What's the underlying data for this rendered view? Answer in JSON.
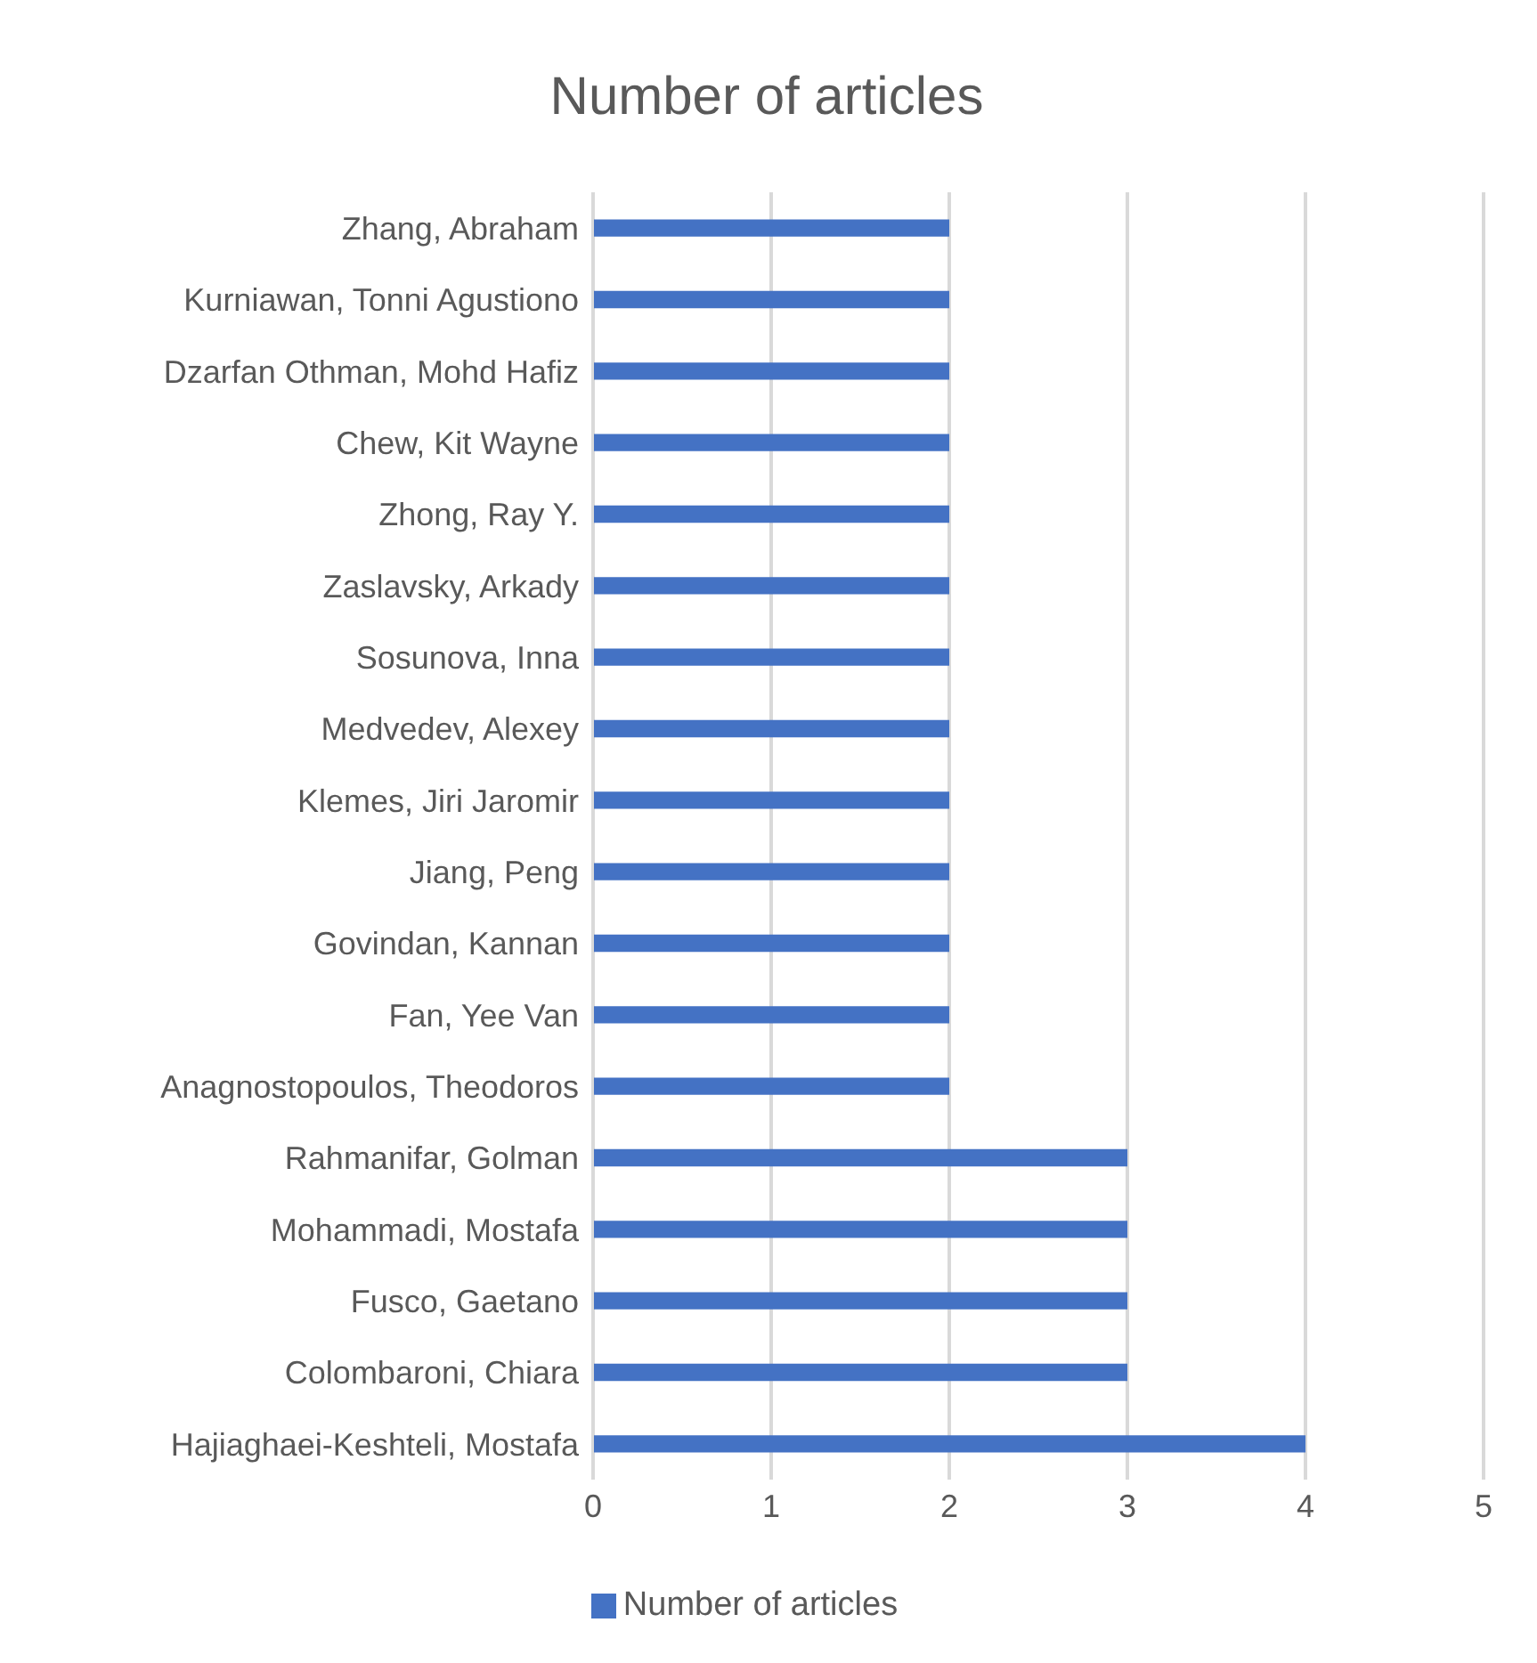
{
  "chart_data": {
    "type": "bar",
    "orientation": "horizontal",
    "title": "Number of articles",
    "categories": [
      "Zhang, Abraham",
      "Kurniawan, Tonni Agustiono",
      "Dzarfan Othman, Mohd Hafiz",
      "Chew, Kit Wayne",
      "Zhong, Ray Y.",
      "Zaslavsky, Arkady",
      "Sosunova, Inna",
      "Medvedev, Alexey",
      "Klemes, Jiri Jaromir",
      "Jiang, Peng",
      "Govindan, Kannan",
      "Fan, Yee Van",
      "Anagnostopoulos, Theodoros",
      "Rahmanifar, Golman",
      "Mohammadi, Mostafa",
      "Fusco, Gaetano",
      "Colombaroni, Chiara",
      "Hajiaghaei-Keshteli, Mostafa"
    ],
    "series": [
      {
        "name": "Number of articles",
        "color": "#4472c4",
        "values": [
          2,
          2,
          2,
          2,
          2,
          2,
          2,
          2,
          2,
          2,
          2,
          2,
          2,
          3,
          3,
          3,
          3,
          4
        ]
      }
    ],
    "xlim": [
      0,
      5
    ],
    "xticks": [
      0,
      1,
      2,
      3,
      4,
      5
    ],
    "grid": "x",
    "legend": "bottom"
  }
}
